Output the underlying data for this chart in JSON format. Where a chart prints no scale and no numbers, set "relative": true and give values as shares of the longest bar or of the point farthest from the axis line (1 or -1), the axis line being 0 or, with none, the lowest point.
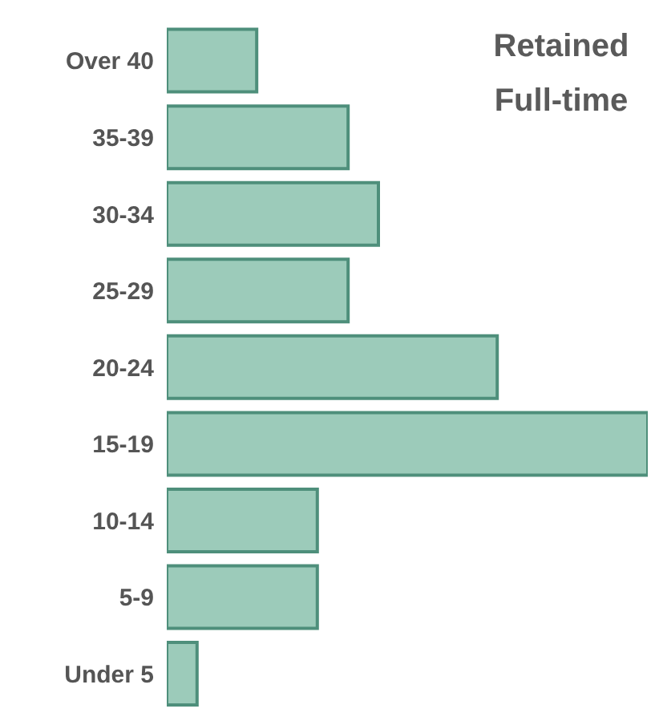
{
  "chart_data": {
    "type": "bar",
    "orientation": "horizontal",
    "relative": true,
    "title": "Retained Full-time",
    "categories": [
      "Over 40",
      "35-39",
      "30-34",
      "25-29",
      "20-24",
      "15-19",
      "10-14",
      "5-9",
      "Under 5"
    ],
    "values": [
      0.187,
      0.377,
      0.44,
      0.377,
      0.687,
      1,
      0.313,
      0.313,
      0.063
    ],
    "color": "#9ccbba"
  }
}
